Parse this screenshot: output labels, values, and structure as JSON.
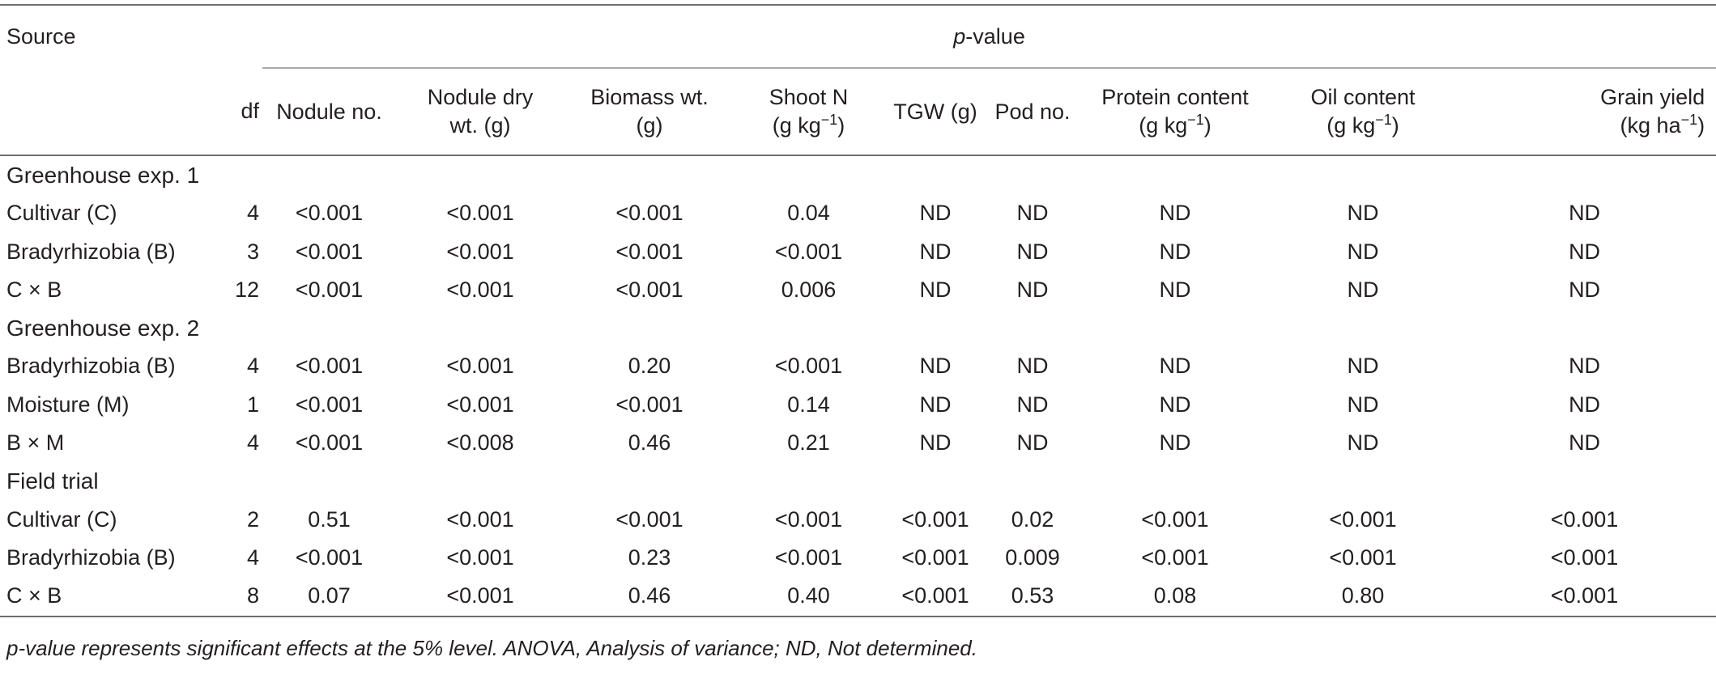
{
  "table": {
    "source_label": "Source",
    "pvalue_italic": "p",
    "pvalue_rest": "-value",
    "columns": {
      "df": "df",
      "nodule_no": "Nodule no.",
      "nodule_dry_1": "Nodule dry",
      "nodule_dry_2": "wt. (g)",
      "biomass_1": "Biomass wt.",
      "biomass_2": "(g)",
      "shootn_1": "Shoot N",
      "shootn_2": "(g kg",
      "tgw": "TGW (g)",
      "pod_no": "Pod no.",
      "protein_1": "Protein content",
      "protein_2": "(g kg",
      "oil_1": "Oil content",
      "oil_2": "(g kg",
      "yield_1": "Grain yield",
      "yield_2": "(kg ha",
      "sup_exp": "−1",
      "close_paren": ")"
    },
    "sections": [
      {
        "title": "Greenhouse exp. 1",
        "rows": [
          {
            "source": "Cultivar (C)",
            "df": "4",
            "values": [
              "<0.001",
              "<0.001",
              "<0.001",
              "0.04",
              "ND",
              "ND",
              "ND",
              "ND",
              "ND"
            ]
          },
          {
            "source": "Bradyrhizobia (B)",
            "df": "3",
            "values": [
              "<0.001",
              "<0.001",
              "<0.001",
              "<0.001",
              "ND",
              "ND",
              "ND",
              "ND",
              "ND"
            ]
          },
          {
            "source": "C × B",
            "df": "12",
            "values": [
              "<0.001",
              "<0.001",
              "<0.001",
              "0.006",
              "ND",
              "ND",
              "ND",
              "ND",
              "ND"
            ]
          }
        ]
      },
      {
        "title": "Greenhouse exp. 2",
        "rows": [
          {
            "source": "Bradyrhizobia (B)",
            "df": "4",
            "values": [
              "<0.001",
              "<0.001",
              "0.20",
              "<0.001",
              "ND",
              "ND",
              "ND",
              "ND",
              "ND"
            ]
          },
          {
            "source": "Moisture (M)",
            "df": "1",
            "values": [
              "<0.001",
              "<0.001",
              "<0.001",
              "0.14",
              "ND",
              "ND",
              "ND",
              "ND",
              "ND"
            ]
          },
          {
            "source": "B × M",
            "df": "4",
            "values": [
              "<0.001",
              "<0.008",
              "0.46",
              "0.21",
              "ND",
              "ND",
              "ND",
              "ND",
              "ND"
            ]
          }
        ]
      },
      {
        "title": "Field trial",
        "rows": [
          {
            "source": "Cultivar (C)",
            "df": "2",
            "values": [
              "0.51",
              "<0.001",
              "<0.001",
              "<0.001",
              "<0.001",
              "0.02",
              "<0.001",
              "<0.001",
              "<0.001"
            ]
          },
          {
            "source": "Bradyrhizobia (B)",
            "df": "4",
            "values": [
              "<0.001",
              "<0.001",
              "0.23",
              "<0.001",
              "<0.001",
              "0.009",
              "<0.001",
              "<0.001",
              "<0.001"
            ]
          },
          {
            "source": "C × B",
            "df": "8",
            "values": [
              "0.07",
              "<0.001",
              "0.46",
              "0.40",
              "<0.001",
              "0.53",
              "0.08",
              "0.80",
              "<0.001"
            ]
          }
        ]
      }
    ]
  },
  "footnote": {
    "text": "p-value represents significant effects at the 5% level. ANOVA, Analysis of variance; ND, Not determined."
  }
}
